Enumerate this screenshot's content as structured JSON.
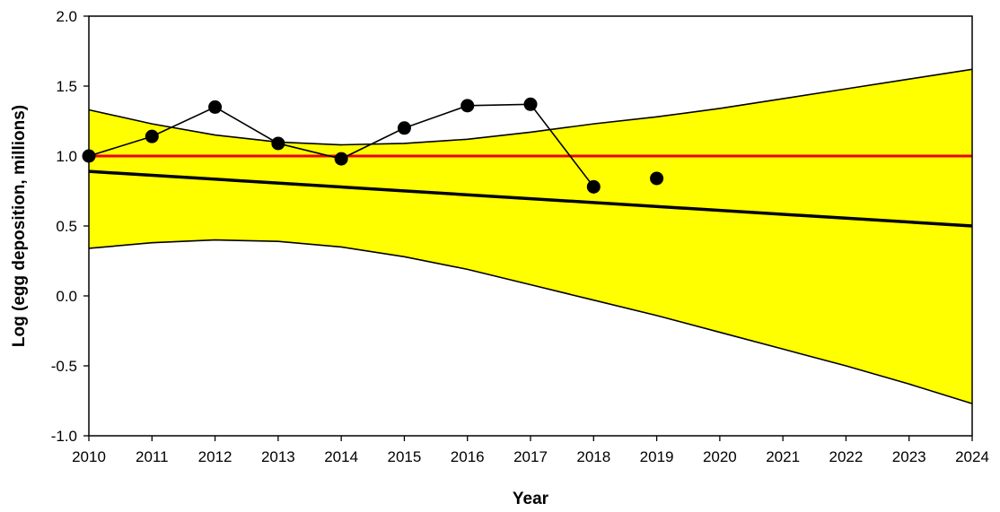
{
  "chart_data": {
    "type": "line",
    "title": "",
    "xlabel": "Year",
    "ylabel": "Log (egg deposition, millions)",
    "xlim": [
      2010,
      2024
    ],
    "ylim": [
      -1.0,
      2.0
    ],
    "x_ticks": [
      "2010",
      "2011",
      "2012",
      "2013",
      "2014",
      "2015",
      "2016",
      "2017",
      "2018",
      "2019",
      "2020",
      "2021",
      "2022",
      "2023",
      "2024"
    ],
    "y_ticks": [
      "-1.0",
      "-0.5",
      "0.0",
      "0.5",
      "1.0",
      "1.5",
      "2.0"
    ],
    "grid": false,
    "legend": "none",
    "band": {
      "fill": "#ffff00",
      "years": [
        2010,
        2011,
        2012,
        2013,
        2014,
        2015,
        2016,
        2017,
        2018,
        2019,
        2020,
        2021,
        2022,
        2023,
        2024
      ],
      "upper": [
        1.33,
        1.23,
        1.15,
        1.1,
        1.08,
        1.09,
        1.12,
        1.17,
        1.23,
        1.28,
        1.34,
        1.41,
        1.48,
        1.55,
        1.62
      ],
      "lower": [
        0.34,
        0.38,
        0.4,
        0.39,
        0.35,
        0.28,
        0.19,
        0.08,
        -0.03,
        -0.14,
        -0.26,
        -0.38,
        -0.5,
        -0.63,
        -0.77
      ]
    },
    "series": [
      {
        "color": "#000000",
        "markers": true,
        "x": [
          2010,
          2011,
          2012,
          2013,
          2014,
          2015,
          2016,
          2017,
          2018,
          2019
        ],
        "y": [
          1.0,
          1.14,
          1.35,
          1.09,
          0.98,
          1.2,
          1.36,
          1.37,
          0.78,
          0.84
        ],
        "break_after": 2018
      },
      {
        "color": "#000000",
        "markers": false,
        "x": [
          2010,
          2024
        ],
        "y": [
          0.89,
          0.5
        ]
      }
    ],
    "reference_line": {
      "y": 1.0,
      "color": "#e8000b"
    },
    "colors": {
      "band_edge": "#000000",
      "axis": "#000000"
    }
  }
}
